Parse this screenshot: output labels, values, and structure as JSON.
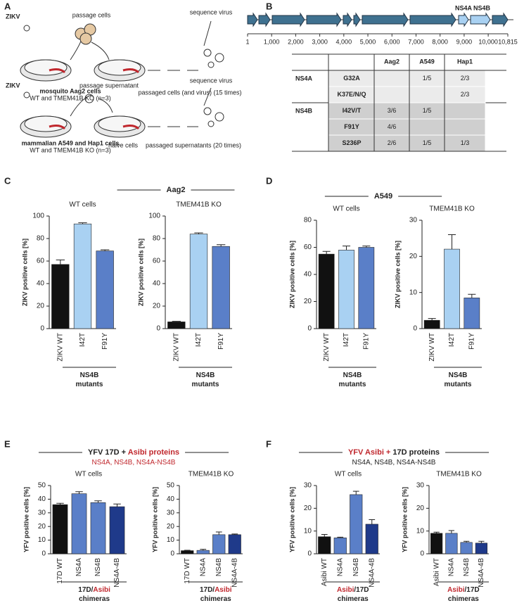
{
  "panel_labels": [
    "A",
    "B",
    "C",
    "D",
    "E",
    "F"
  ],
  "panel_a": {
    "rows": [
      {
        "virus": "ZIKV",
        "step1": "passage cells",
        "step2": "sequence virus",
        "cells": "mosquito Aag2 cells",
        "cells_note": "WT and TMEM41B KO (n=3)",
        "passaged": "passaged cells (and virus) (15 times)"
      },
      {
        "virus": "ZIKV",
        "step1": "passage supernatant",
        "step2": "sequence virus",
        "cells": "mammalian A549 and Hap1 cells",
        "cells_note": "WT and TMEM41B KO (n=3)",
        "naive": "naive cells",
        "passaged": "passaged supernatants (20 times)"
      }
    ]
  },
  "panel_b": {
    "genome": {
      "xlim": [
        1,
        10815
      ],
      "xticks": [
        1,
        {
          "value": 1000,
          "label": "1,000"
        },
        {
          "value": 2000,
          "label": "2,000"
        },
        {
          "value": 3000,
          "label": "3,000"
        },
        {
          "value": 4000,
          "label": "4,000"
        },
        {
          "value": 5000,
          "label": "5,000"
        },
        {
          "value": 6000,
          "label": "6,000"
        },
        {
          "value": 7000,
          "label": "7,000"
        },
        {
          "value": 8000,
          "label": "8,000"
        },
        {
          "value": 9000,
          "label": "9,000"
        },
        {
          "value": 10000,
          "label": "10,000"
        },
        {
          "value": 10815,
          "label": "10,815"
        }
      ],
      "labels": [
        "NS4A",
        "NS4B"
      ]
    },
    "table": {
      "columns": [
        "Aag2",
        "A549",
        "Hap1"
      ],
      "groups": [
        {
          "protein": "NS4A",
          "rows": [
            {
              "mutation": "G32A",
              "cells": [
                null,
                "1/5",
                "2/3"
              ]
            },
            {
              "mutation": "K37E/N/Q",
              "cells": [
                null,
                null,
                "2/3"
              ]
            }
          ]
        },
        {
          "protein": "NS4B",
          "rows": [
            {
              "mutation": "I42V/T",
              "cells": [
                "3/6",
                "1/5",
                null
              ]
            },
            {
              "mutation": "F91Y",
              "cells": [
                "4/6",
                null,
                null
              ]
            },
            {
              "mutation": "S236P",
              "cells": [
                "2/6",
                "1/5",
                "1/3"
              ]
            }
          ]
        }
      ]
    }
  },
  "chart_groups": [
    {
      "title": [
        {
          "text": "Aag2"
        }
      ]
    },
    {
      "title": [
        {
          "text": "A549"
        }
      ]
    },
    {
      "title": [
        {
          "text": "YFV 17D + "
        },
        {
          "text": "Asibi proteins",
          "color": "#c0272d"
        }
      ],
      "subtitle": [
        {
          "text": "NS4A, NS4B, NS4A-NS4B",
          "color": "#c0272d"
        }
      ]
    },
    {
      "title": [
        {
          "text": "YFV Asibi + ",
          "color": "#c0272d"
        },
        {
          "text": "17D proteins"
        }
      ],
      "subtitle": [
        {
          "text": "NS4A, NS4B, NS4A-NS4B"
        }
      ]
    }
  ],
  "chart_data": [
    {
      "type": "bar",
      "title": "WT cells",
      "ylabel": "ZIKV positive cells [%]",
      "categories": [
        "ZIKV WT",
        "I42T",
        "F91Y"
      ],
      "values": [
        57,
        93,
        69
      ],
      "errors": [
        4,
        1,
        1
      ],
      "colors": [
        "#111111",
        "#a9d1f2",
        "#5a7fc8"
      ],
      "ylim": [
        0,
        100
      ],
      "yticks": [
        0,
        20,
        40,
        60,
        80,
        100
      ],
      "xlabel": [
        [
          {
            "text": "NS4B"
          }
        ],
        [
          {
            "text": "mutants"
          }
        ]
      ]
    },
    {
      "type": "bar",
      "title": "TMEM41B KO",
      "ylabel": "ZIKV positive cells [%]",
      "categories": [
        "ZIKV WT",
        "I42T",
        "F91Y"
      ],
      "values": [
        6,
        84,
        73
      ],
      "errors": [
        0.5,
        1,
        1.5
      ],
      "colors": [
        "#111111",
        "#a9d1f2",
        "#5a7fc8"
      ],
      "ylim": [
        0,
        100
      ],
      "yticks": [
        0,
        20,
        40,
        60,
        80,
        100
      ],
      "xlabel": [
        [
          {
            "text": "NS4B"
          }
        ],
        [
          {
            "text": "mutants"
          }
        ]
      ]
    },
    {
      "type": "bar",
      "title": "WT cells",
      "ylabel": "ZIKV positive cells [%]",
      "categories": [
        "ZIKV WT",
        "I42T",
        "F91Y"
      ],
      "values": [
        55,
        58,
        60
      ],
      "errors": [
        2,
        3,
        1
      ],
      "colors": [
        "#111111",
        "#a9d1f2",
        "#5a7fc8"
      ],
      "ylim": [
        0,
        80
      ],
      "yticks": [
        0,
        20,
        40,
        60,
        80
      ],
      "xlabel": [
        [
          {
            "text": "NS4B"
          }
        ],
        [
          {
            "text": "mutants"
          }
        ]
      ]
    },
    {
      "type": "bar",
      "title": "TMEM41B KO",
      "ylabel": "ZIKV positive cells [%]",
      "categories": [
        "ZIKV WT",
        "I42T",
        "F91Y"
      ],
      "values": [
        2.3,
        22,
        8.5
      ],
      "errors": [
        0.5,
        4,
        1
      ],
      "colors": [
        "#111111",
        "#a9d1f2",
        "#5a7fc8"
      ],
      "ylim": [
        0,
        30
      ],
      "yticks": [
        0,
        10,
        20,
        30
      ],
      "xlabel": [
        [
          {
            "text": "NS4B"
          }
        ],
        [
          {
            "text": "mutants"
          }
        ]
      ]
    },
    {
      "type": "bar",
      "title": "WT cells",
      "ylabel": "YFV positive cells [%]",
      "categories": [
        "17D WT",
        "NS4A",
        "NS4B",
        "NS4A-4B"
      ],
      "values": [
        36,
        44,
        37.5,
        34.5
      ],
      "errors": [
        1,
        1.5,
        1.3,
        2
      ],
      "colors": [
        "#111111",
        "#5a7fc8",
        "#5a7fc8",
        "#1f3a8a"
      ],
      "ylim": [
        0,
        50
      ],
      "yticks": [
        0,
        10,
        20,
        30,
        40,
        50
      ],
      "xlabel": [
        [
          {
            "text": "17D/"
          },
          {
            "text": "Asibi",
            "color": "#c0272d"
          }
        ],
        [
          {
            "text": "chimeras"
          }
        ]
      ]
    },
    {
      "type": "bar",
      "title": "TMEM41B KO",
      "ylabel": "YFV positive cells [%]",
      "categories": [
        "17D WT",
        "NS4A",
        "NS4B",
        "NS4A-4B"
      ],
      "values": [
        2.3,
        2.5,
        14,
        14
      ],
      "errors": [
        0.3,
        0.8,
        2,
        0.5
      ],
      "colors": [
        "#111111",
        "#5a7fc8",
        "#5a7fc8",
        "#1f3a8a"
      ],
      "ylim": [
        0,
        50
      ],
      "yticks": [
        0,
        10,
        20,
        30,
        40,
        50
      ],
      "xlabel": [
        [
          {
            "text": "17D/"
          },
          {
            "text": "Asibi",
            "color": "#c0272d"
          }
        ],
        [
          {
            "text": "chimeras"
          }
        ]
      ]
    },
    {
      "type": "bar",
      "title": "WT cells",
      "ylabel": "YFV positive cells [%]",
      "categories": [
        "Asibi WT",
        "NS4A",
        "NS4B",
        "NS4A-4B"
      ],
      "values": [
        7.5,
        7,
        26,
        13
      ],
      "errors": [
        1,
        0.3,
        1.5,
        2
      ],
      "colors": [
        "#111111",
        "#5a7fc8",
        "#5a7fc8",
        "#1f3a8a"
      ],
      "ylim": [
        0,
        30
      ],
      "yticks": [
        0,
        10,
        20,
        30
      ],
      "xlabel": [
        [
          {
            "text": "Asibi",
            "color": "#c0272d"
          },
          {
            "text": "/17D"
          }
        ],
        [
          {
            "text": "chimeras"
          }
        ]
      ]
    },
    {
      "type": "bar",
      "title": "TMEM41B KO",
      "ylabel": "YFV positive cells [%]",
      "categories": [
        "Asibi WT",
        "NS4A",
        "NS4B",
        "NS4A-4B"
      ],
      "values": [
        9,
        9,
        5,
        4.7
      ],
      "errors": [
        0.5,
        1.2,
        0.5,
        0.8
      ],
      "colors": [
        "#111111",
        "#5a7fc8",
        "#5a7fc8",
        "#1f3a8a"
      ],
      "ylim": [
        0,
        30
      ],
      "yticks": [
        0,
        10,
        20,
        30
      ],
      "xlabel": [
        [
          {
            "text": "Asibi",
            "color": "#c0272d"
          },
          {
            "text": "/17D"
          }
        ],
        [
          {
            "text": "chimeras"
          }
        ]
      ]
    }
  ]
}
